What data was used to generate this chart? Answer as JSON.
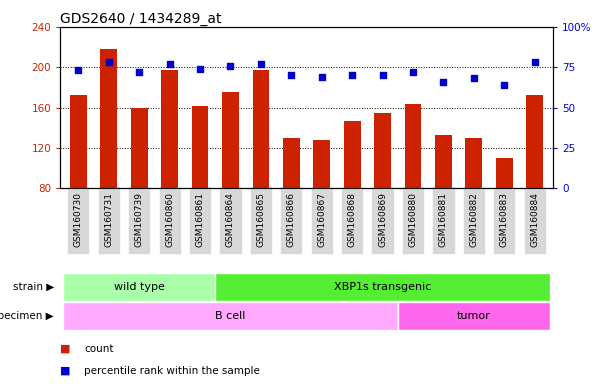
{
  "title": "GDS2640 / 1434289_at",
  "samples": [
    "GSM160730",
    "GSM160731",
    "GSM160739",
    "GSM160860",
    "GSM160861",
    "GSM160864",
    "GSM160865",
    "GSM160866",
    "GSM160867",
    "GSM160868",
    "GSM160869",
    "GSM160880",
    "GSM160881",
    "GSM160882",
    "GSM160883",
    "GSM160884"
  ],
  "counts": [
    172,
    218,
    160,
    197,
    162,
    175,
    197,
    130,
    128,
    147,
    155,
    163,
    133,
    130,
    110,
    172
  ],
  "percentiles": [
    73,
    78,
    72,
    77,
    74,
    76,
    77,
    70,
    69,
    70,
    70,
    72,
    66,
    68,
    64,
    78
  ],
  "ylim_left": [
    80,
    240
  ],
  "ylim_right": [
    0,
    100
  ],
  "yticks_left": [
    80,
    120,
    160,
    200,
    240
  ],
  "yticks_right": [
    0,
    25,
    50,
    75,
    100
  ],
  "yticklabels_right": [
    "0",
    "25",
    "50",
    "75",
    "100%"
  ],
  "bar_color": "#cc2200",
  "dot_color": "#0000cc",
  "strain_wild": {
    "label": "wild type",
    "start": 0,
    "end": 5,
    "color": "#aaffaa"
  },
  "strain_xbp": {
    "label": "XBP1s transgenic",
    "start": 5,
    "end": 16,
    "color": "#55ee33"
  },
  "specimen_bcell": {
    "label": "B cell",
    "start": 0,
    "end": 11,
    "color": "#ffaaff"
  },
  "specimen_tumor": {
    "label": "tumor",
    "start": 11,
    "end": 16,
    "color": "#ff66ee"
  },
  "tick_label_bg": "#d8d8d8",
  "legend_count_label": "count",
  "legend_pct_label": "percentile rank within the sample"
}
